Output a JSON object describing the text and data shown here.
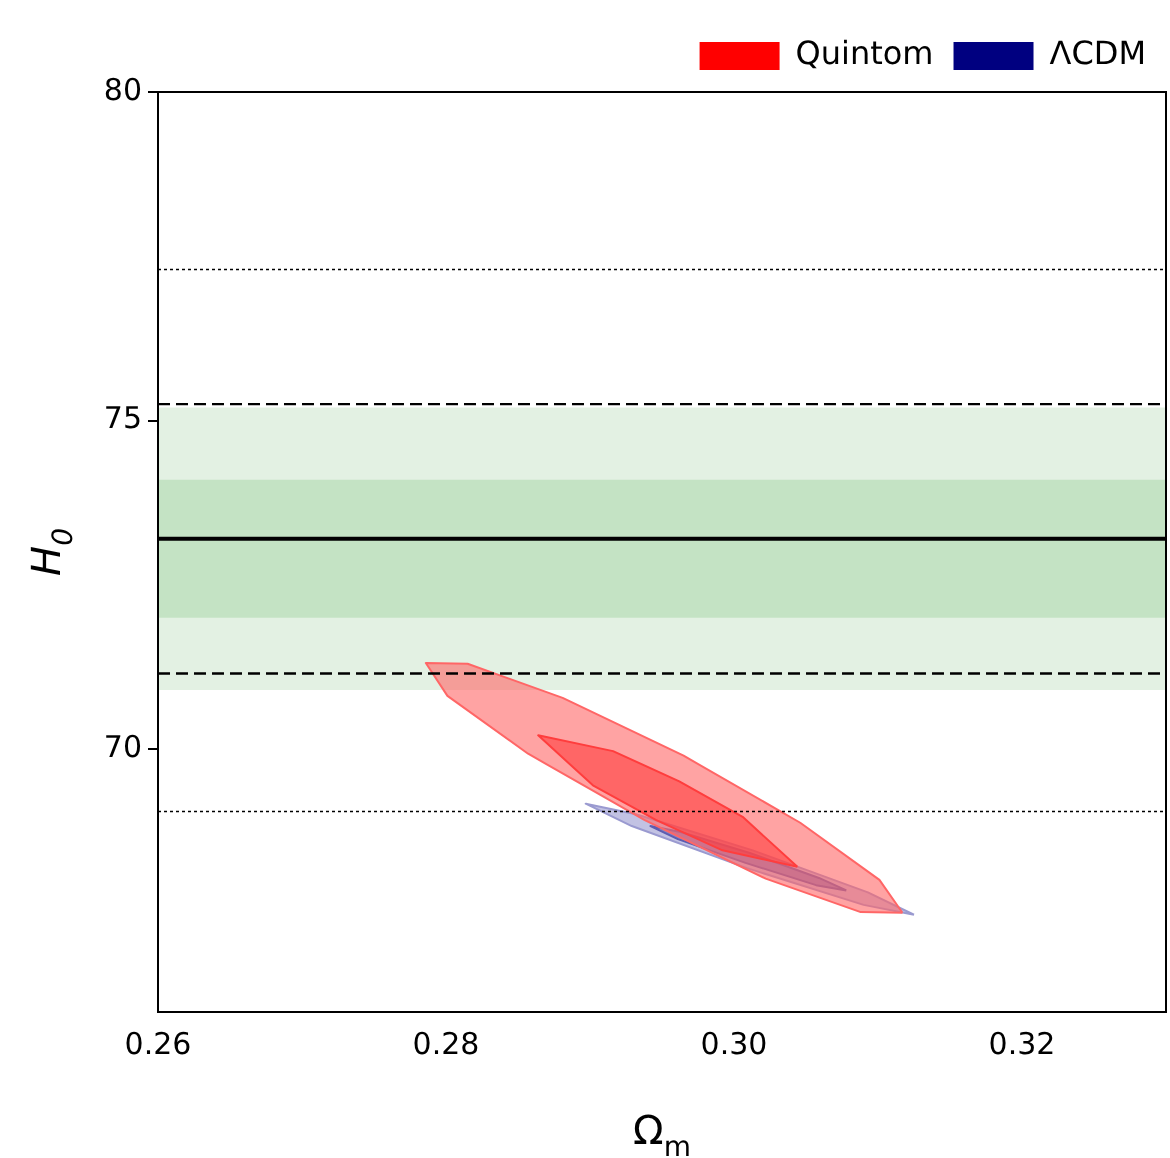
{
  "chart_data": {
    "type": "area",
    "xlabel": "Ω$_{m}$",
    "ylabel": "H$_{0}$",
    "xlim": [
      0.26,
      0.33
    ],
    "xticks": [
      0.26,
      0.28,
      {
        "value": 0.3,
        "label": "0.30"
      },
      0.32
    ],
    "ylim": [
      66,
      80
    ],
    "yticks": [
      70,
      75,
      80
    ],
    "grid": false,
    "legend": "top right",
    "series": [
      {
        "color": "#ff6666",
        "x": [
          0.3117,
          0.3088,
          0.3022,
          0.2938,
          0.2857,
          0.2801,
          0.2786,
          0.2815,
          0.2881,
          0.2965,
          0.3046,
          0.3101
        ],
        "values": [
          67.51,
          67.52,
          68.03,
          68.92,
          69.93,
          70.81,
          71.31,
          71.3,
          70.78,
          69.9,
          68.88,
          68.01
        ]
      },
      {
        "name": "Quintom",
        "color": "#ff0000",
        "x": [
          0.3044,
          0.2992,
          0.2946,
          0.2902,
          0.2864,
          0.2916,
          0.2962,
          0.3006
        ],
        "values": [
          68.21,
          68.46,
          68.92,
          69.45,
          70.21,
          69.97,
          69.51,
          68.97
        ]
      },
      {
        "color": "#9a9ad0",
        "x": [
          0.3125,
          0.309,
          0.3009,
          0.2929,
          0.2897,
          0.2932,
          0.3013,
          0.3093
        ],
        "values": [
          67.48,
          67.63,
          68.19,
          68.83,
          69.17,
          69.01,
          68.46,
          67.82
        ]
      },
      {
        "name": "ΛCDM",
        "color": "#000080",
        "x": [
          0.3078,
          0.3057,
          0.3008,
          0.2961,
          0.2942,
          0.2963,
          0.3011,
          0.3059
        ],
        "values": [
          67.85,
          67.93,
          68.27,
          68.63,
          68.83,
          68.74,
          68.42,
          68.04
        ]
      }
    ],
    "bands": [
      {
        "axis": "y",
        "from": 70.9,
        "to": 75.2,
        "color": "#e3f1e3"
      },
      {
        "axis": "y",
        "from": 72.0,
        "to": 74.1,
        "color": "#c4e3c4"
      }
    ],
    "ref_lines": [
      {
        "axis": "y",
        "value": 73.2,
        "line_style": "solid",
        "color": "#000000"
      },
      {
        "axis": "y",
        "value": 75.25,
        "line_style": "dashed",
        "color": "#000000"
      },
      {
        "axis": "y",
        "value": 71.15,
        "line_style": "dashed",
        "color": "#000000"
      },
      {
        "axis": "y",
        "value": 77.3,
        "line_style": "dotted",
        "color": "#000000"
      },
      {
        "axis": "y",
        "value": 69.05,
        "line_style": "dotted",
        "color": "#000000"
      }
    ]
  }
}
